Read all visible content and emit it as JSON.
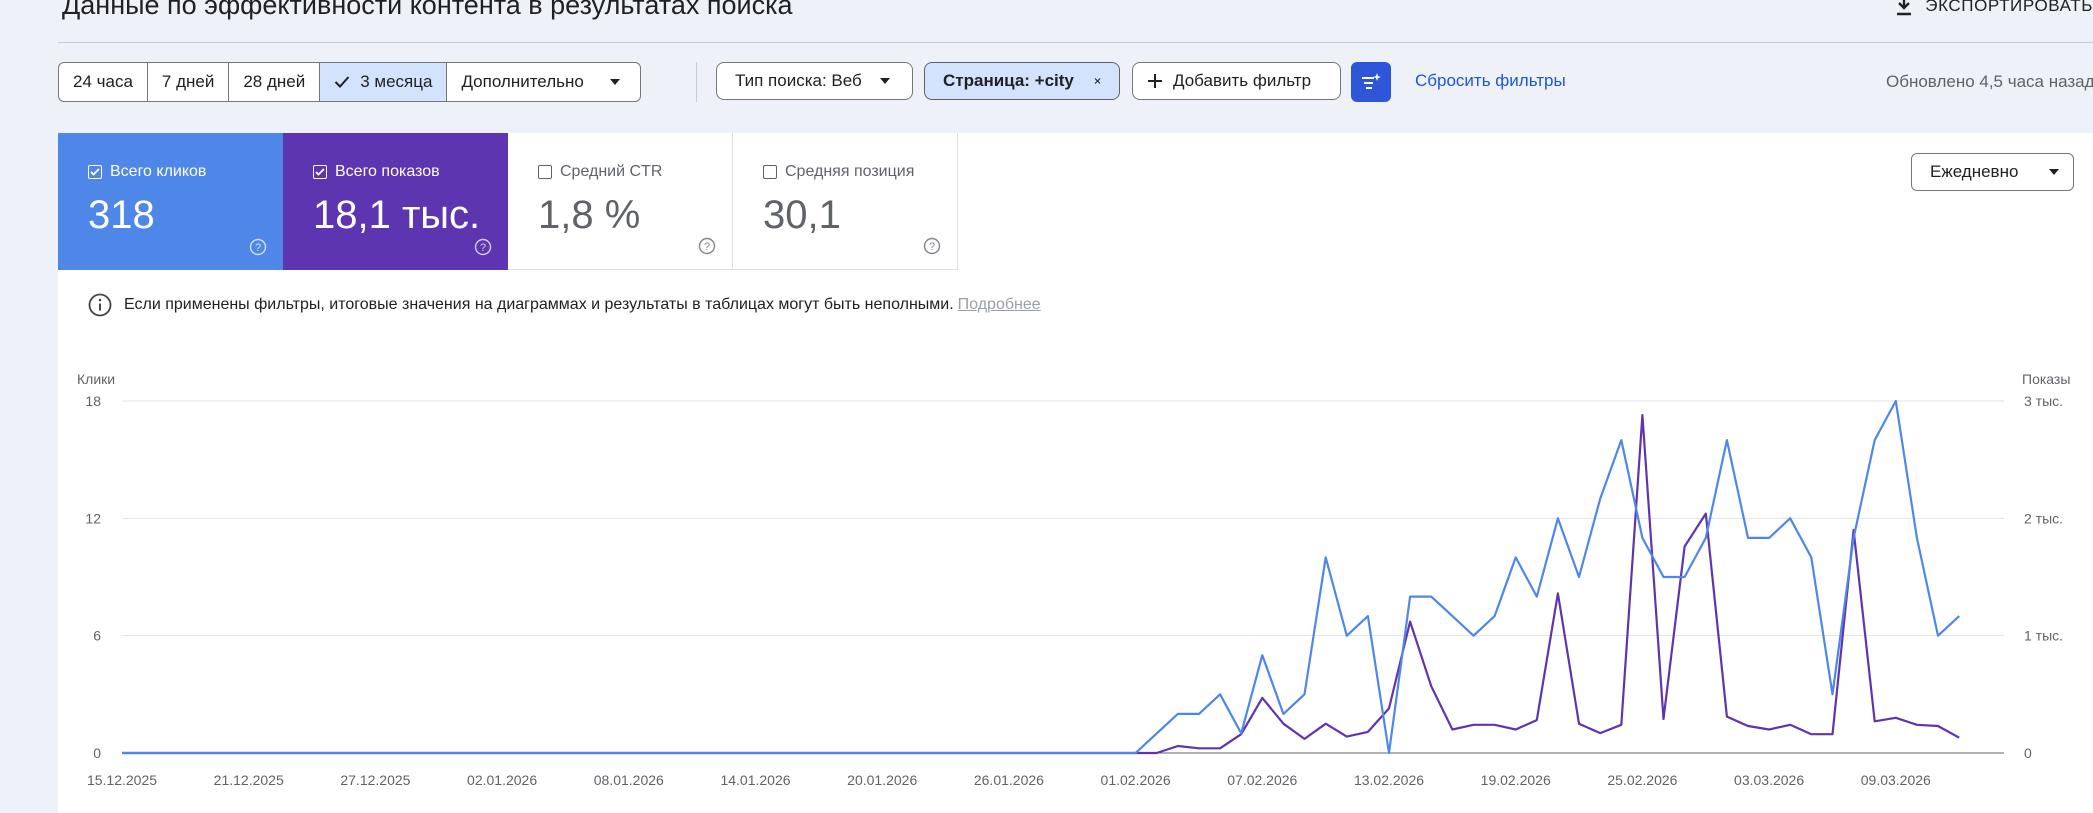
{
  "header": {
    "title": "Данные по эффективности контента в результатах поиска",
    "export_label": "ЭКСПОРТИРОВАТЬ"
  },
  "toolbar": {
    "periods": [
      {
        "label": "24 часа",
        "active": false
      },
      {
        "label": "7 дней",
        "active": false
      },
      {
        "label": "28 дней",
        "active": false
      },
      {
        "label": "3 месяца",
        "active": true
      },
      {
        "label": "Дополнительно",
        "active": false
      }
    ],
    "search_type": "Тип поиска: Веб",
    "page_filter": "Страница: +city",
    "add_filter": "Добавить фильтр",
    "reset": "Сбросить фильтры",
    "updated": "Обновлено 4,5 часа назад"
  },
  "metrics": [
    {
      "label": "Всего кликов",
      "value": "318",
      "checked": true
    },
    {
      "label": "Всего показов",
      "value": "18,1 тыс.",
      "checked": true
    },
    {
      "label": "Средний CTR",
      "value": "1,8 %",
      "checked": false
    },
    {
      "label": "Средняя позиция",
      "value": "30,1",
      "checked": false
    }
  ],
  "period_select": "Ежедневно",
  "info": {
    "text": "Если применены фильтры, итоговые значения на диаграммах и результаты в таблицах могут быть неполными.",
    "link": "Подробнее"
  },
  "colors": {
    "clicks": "#4f87e9",
    "impressions": "#5e35b1",
    "active_chip": "#d3e3fd",
    "accent": "#2f56d9"
  },
  "chart_data": {
    "type": "line",
    "ylabel_left": "Клики",
    "ylabel_right": "Показы",
    "y_ticks_left": [
      "0",
      "6",
      "12",
      "18"
    ],
    "y_ticks_right": [
      "0",
      "1 тыс.",
      "2 тыс.",
      "3 тыс."
    ],
    "ylim_left": [
      0,
      18
    ],
    "ylim_right": [
      0,
      3000
    ],
    "x_ticks": [
      "15.12.2025",
      "21.12.2025",
      "27.12.2025",
      "02.01.2026",
      "08.01.2026",
      "14.01.2026",
      "20.01.2026",
      "26.01.2026",
      "01.02.2026",
      "07.02.2026",
      "13.02.2026",
      "19.02.2026",
      "25.02.2026",
      "03.03.2026",
      "09.03.2026"
    ],
    "grid": true,
    "series": [
      {
        "name": "Клики",
        "axis": "left",
        "color": "#4f87e9",
        "start_date": "2026-02-01",
        "values": [
          0,
          1,
          2,
          2,
          3,
          1,
          5,
          2,
          3,
          10,
          6,
          7,
          0,
          8,
          8,
          7,
          6,
          7,
          10,
          8,
          12,
          9,
          13,
          16,
          11,
          9,
          9,
          11,
          16,
          11,
          11,
          12,
          10,
          3,
          11,
          16,
          18,
          11,
          6,
          7
        ]
      },
      {
        "name": "Показы",
        "axis": "right",
        "color": "#5e35b1",
        "start_date": "2026-02-01",
        "values": [
          0,
          0,
          60,
          40,
          40,
          160,
          470,
          250,
          120,
          250,
          140,
          180,
          380,
          1120,
          570,
          200,
          240,
          240,
          200,
          280,
          1360,
          250,
          170,
          240,
          2880,
          290,
          1760,
          2040,
          310,
          230,
          200,
          240,
          160,
          160,
          1900,
          270,
          300,
          240,
          230,
          130
        ]
      }
    ]
  }
}
